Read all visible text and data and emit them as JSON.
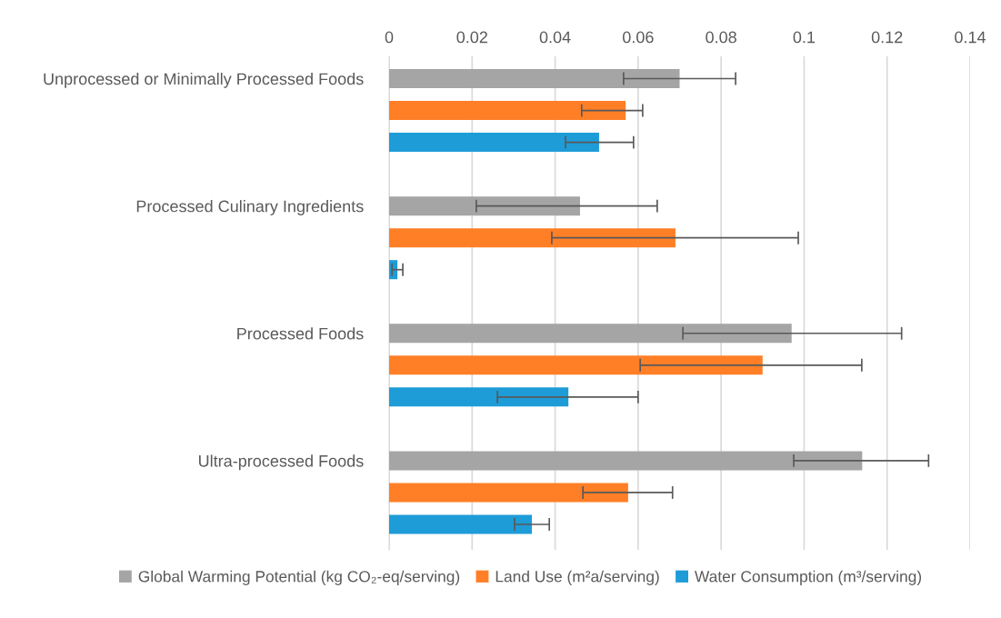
{
  "chart_data": {
    "type": "bar",
    "orientation": "horizontal",
    "categories": [
      "Unprocessed or Minimally Processed Foods",
      "Processed Culinary Ingredients",
      "Processed Foods",
      "Ultra-processed Foods"
    ],
    "series": [
      {
        "name": "Global Warming Potential (kg CO₂-eq/serving)",
        "color": "#a5a5a5",
        "values": [
          0.07,
          0.046,
          0.097,
          0.114
        ],
        "errors": [
          [
            0.0565,
            0.0835
          ],
          [
            0.021,
            0.0646
          ],
          [
            0.0708,
            0.1235
          ],
          [
            0.0975,
            0.13
          ]
        ]
      },
      {
        "name": "Land Use (m²a/serving)",
        "color": "#ff7f27",
        "values": [
          0.057,
          0.069,
          0.09,
          0.0576
        ],
        "errors": [
          [
            0.0464,
            0.0611
          ],
          [
            0.0392,
            0.0986
          ],
          [
            0.0605,
            0.1139
          ],
          [
            0.0467,
            0.0683
          ]
        ]
      },
      {
        "name": "Water Consumption (m³/serving)",
        "color": "#1e9cd8",
        "values": [
          0.0506,
          0.002,
          0.0432,
          0.0344
        ],
        "errors": [
          [
            0.0425,
            0.0589
          ],
          0.0013,
          [
            0.0261,
            0.06
          ],
          [
            0.0302,
            0.0386
          ]
        ]
      }
    ],
    "xlim": [
      0,
      0.14
    ],
    "xticks": [
      0,
      0.02,
      0.04,
      0.06,
      0.08,
      0.1,
      0.12,
      0.14
    ],
    "grid": "x",
    "legend": "bottom"
  }
}
